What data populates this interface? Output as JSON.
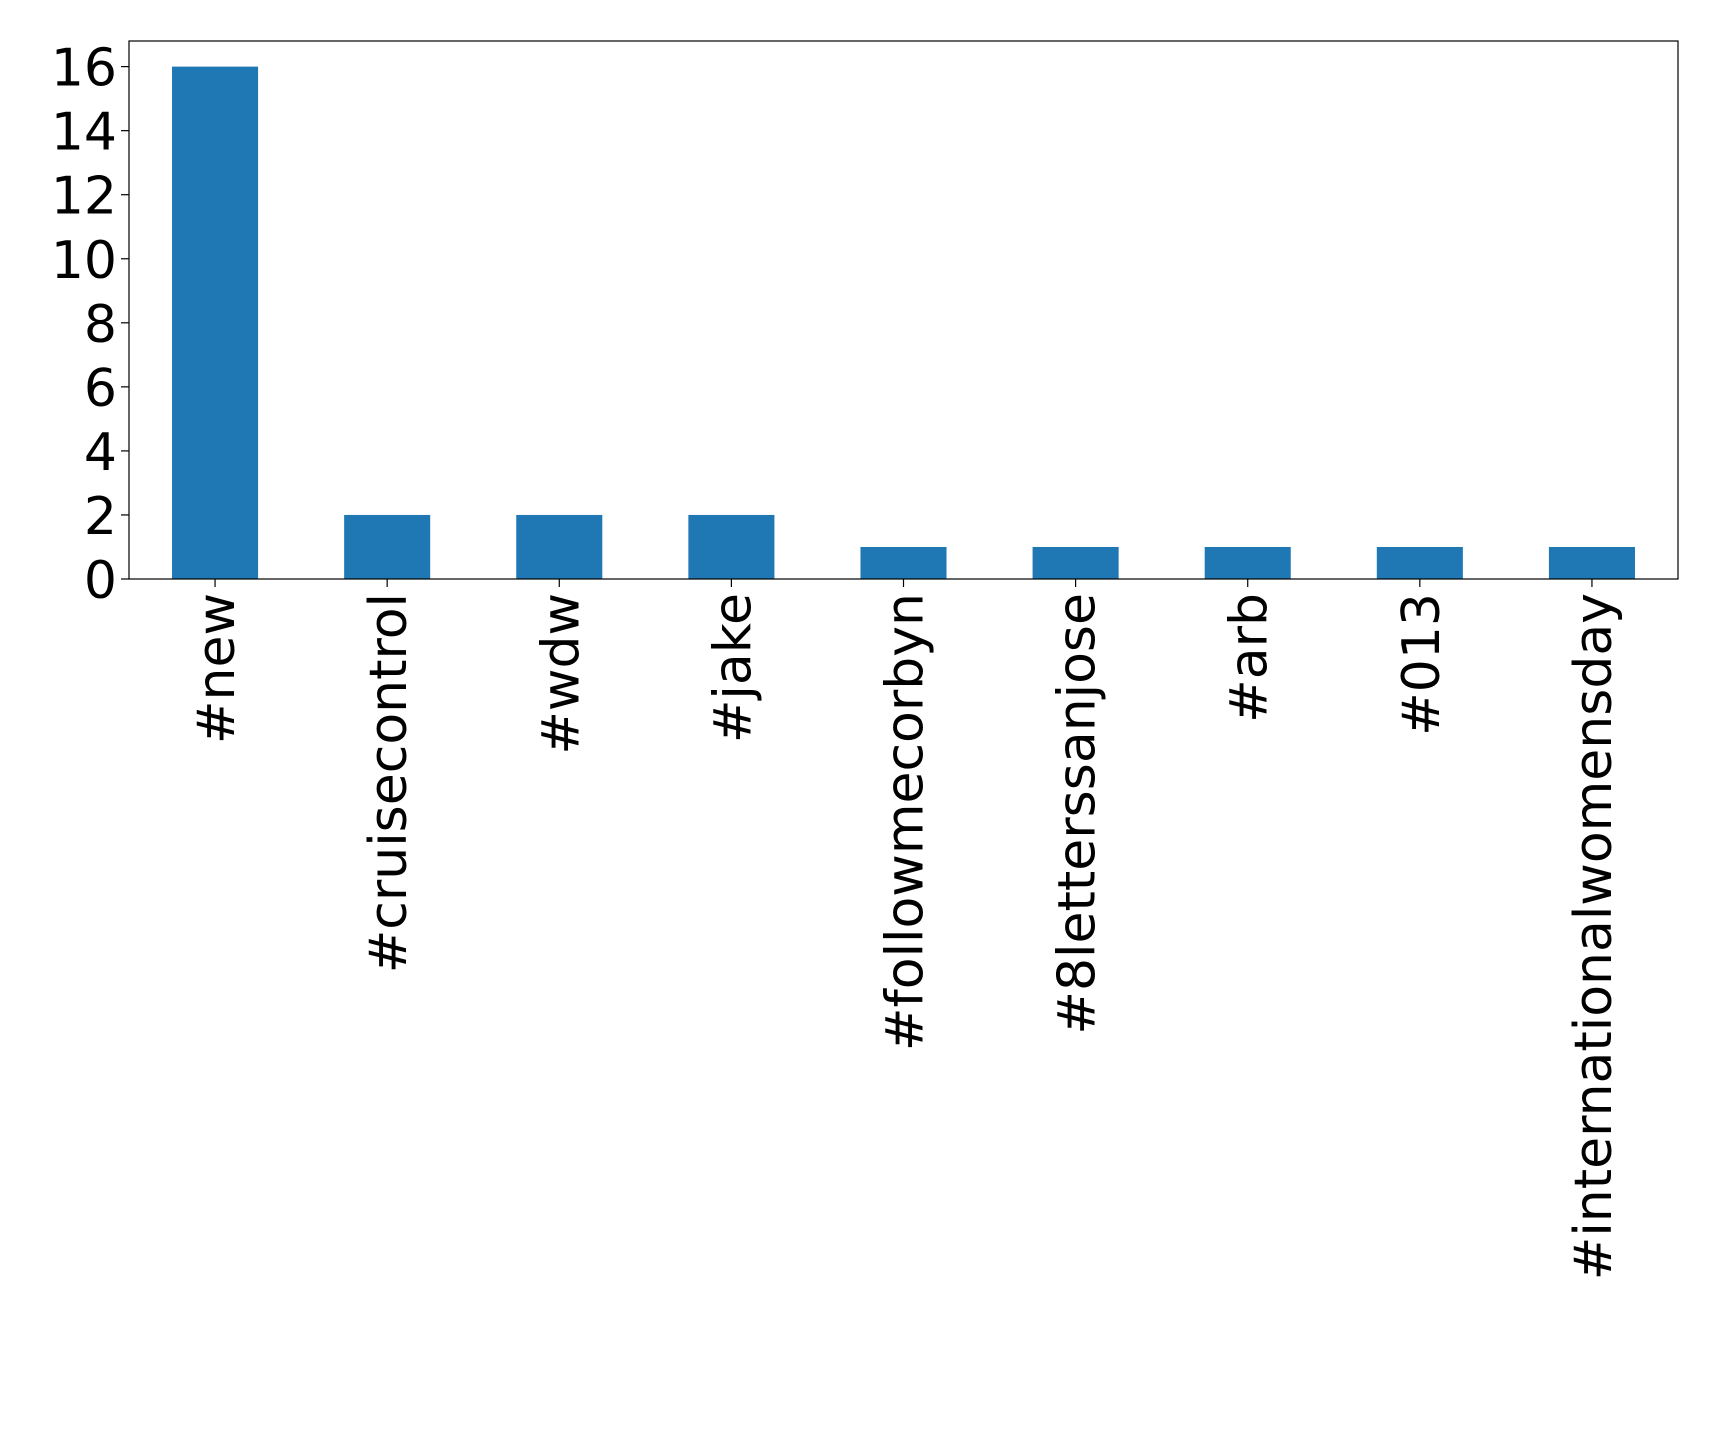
{
  "chart_data": {
    "type": "bar",
    "categories": [
      "#new",
      "#cruisecontrol",
      "#wdw",
      "#jake",
      "#followmecorbyn",
      "#8letterssanjose",
      "#arb",
      "#013",
      "#internationalwomensday"
    ],
    "values": [
      16,
      2,
      2,
      2,
      1,
      1,
      1,
      1,
      1
    ],
    "color": "#1f77b4",
    "ylim": [
      0,
      16.8
    ],
    "yticks": [
      0,
      2,
      4,
      6,
      8,
      10,
      12,
      14,
      16
    ],
    "grid": false
  }
}
